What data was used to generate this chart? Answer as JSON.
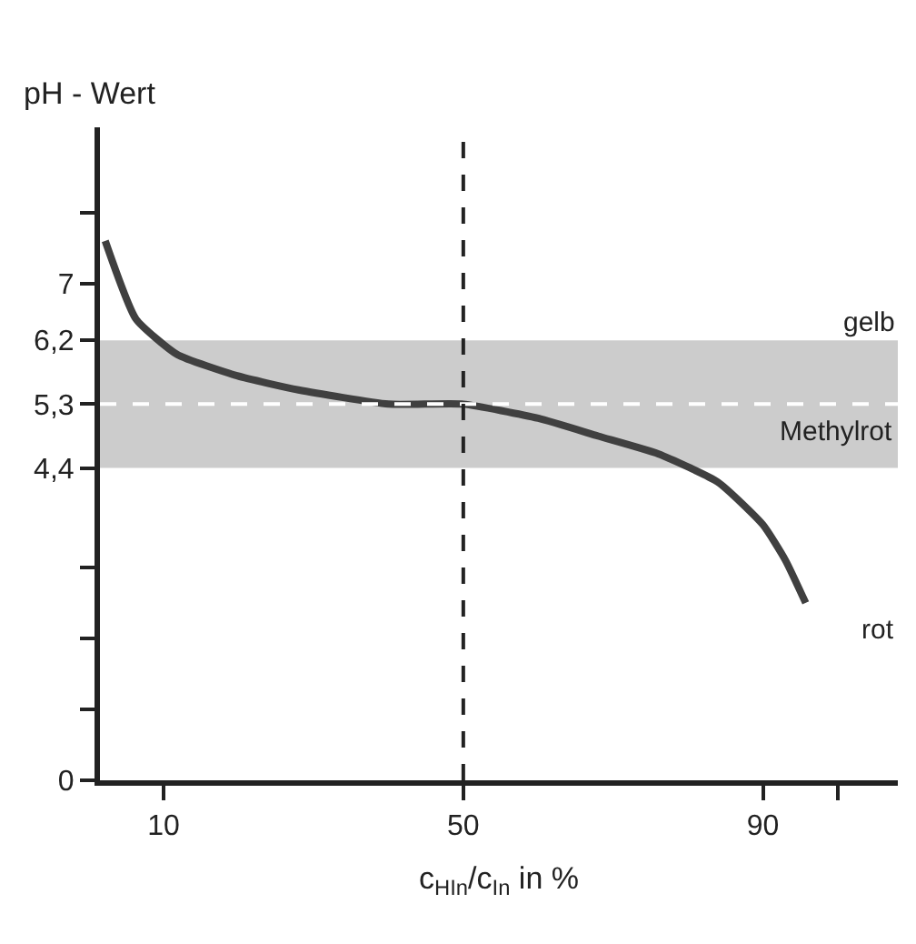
{
  "chart_data": {
    "type": "line",
    "ylabel": "pH - Wert",
    "xlabel": "c$_{HIn}$/c$_{In}$ in %",
    "x": [
      2.2,
      6.3,
      11.8,
      19.8,
      28,
      40,
      50,
      60,
      68,
      76,
      84,
      90,
      93,
      95.7
    ],
    "series": [
      {
        "color": "#404040",
        "values": [
          7.6,
          6.5,
          6.0,
          5.7,
          5.5,
          5.3,
          5.3,
          5.1,
          4.85,
          4.6,
          4.2,
          3.6,
          3.1,
          2.5
        ]
      }
    ],
    "xlim": [
      1.5,
      108
    ],
    "ylim": [
      0,
      9.2
    ],
    "xticks": [
      10,
      50,
      90,
      {
        "value": 100,
        "label": null
      }
    ],
    "yticks": [
      0,
      {
        "value": 1,
        "label": null
      },
      {
        "value": 2,
        "label": null
      },
      {
        "value": 3,
        "label": null
      },
      {
        "value": 4.4,
        "label": "4,4"
      },
      {
        "value": 5.3,
        "label": "5,3"
      },
      {
        "value": 6.2,
        "label": "6,2"
      },
      7,
      {
        "value": 8,
        "label": null
      }
    ],
    "bands": [
      {
        "axis": "y",
        "from": 4.4,
        "to": 6.2,
        "color": "#cccccc"
      }
    ],
    "ref_lines": [
      {
        "axis": "y",
        "value": 5.3,
        "color": "#ffffff",
        "line_style": "dashed"
      },
      {
        "axis": "x",
        "value": 50,
        "color": "#222222",
        "line_style": "dashed"
      }
    ],
    "annotations": [
      "gelb",
      {
        "text": "Methylrot",
        "x": 108,
        "y": 4.9
      },
      "rot"
    ],
    "grid": false,
    "legend": false,
    "marker": "none",
    "line_style": "solid"
  }
}
